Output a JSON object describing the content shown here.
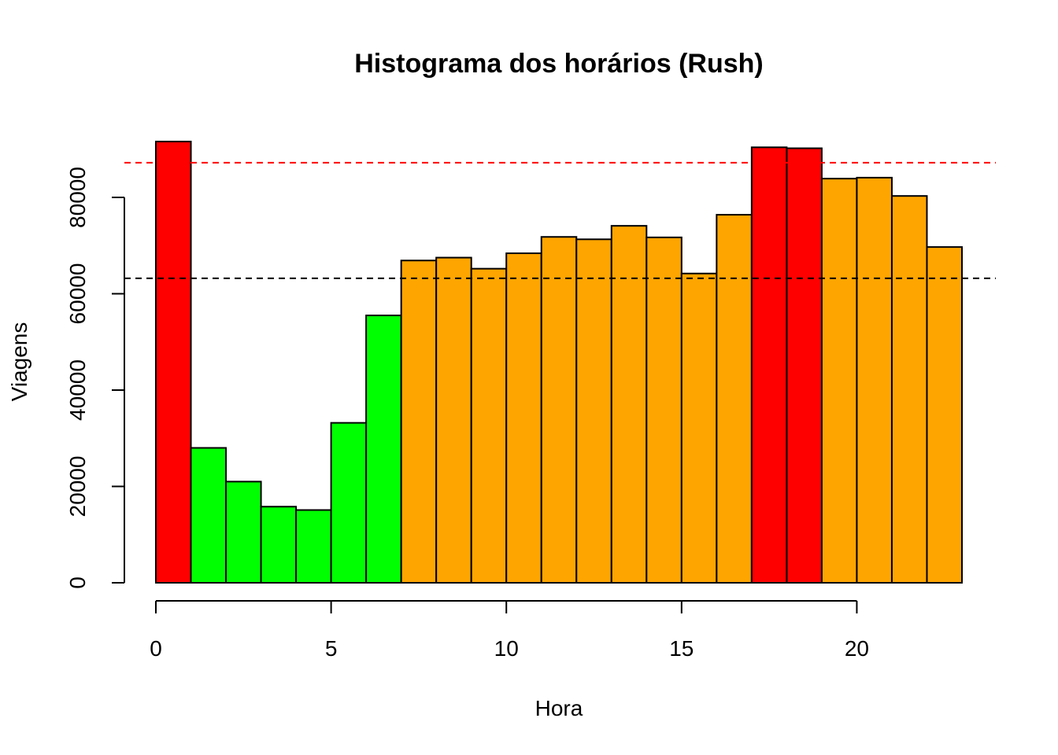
{
  "chart_data": {
    "type": "bar",
    "title": "Histograma dos horários (Rush)",
    "xlabel": "Hora",
    "ylabel": "Viagens",
    "x_ticks": [
      0,
      5,
      10,
      15,
      20
    ],
    "y_ticks": [
      0,
      20000,
      40000,
      60000,
      80000
    ],
    "xlim": [
      0,
      23
    ],
    "ylim": [
      0,
      92000
    ],
    "grid": false,
    "legend": "none",
    "bins": [
      {
        "start": 0,
        "end": 1,
        "value": 91600,
        "color": "#ff0000"
      },
      {
        "start": 1,
        "end": 2,
        "value": 28000,
        "color": "#00ff00"
      },
      {
        "start": 2,
        "end": 3,
        "value": 21000,
        "color": "#00ff00"
      },
      {
        "start": 3,
        "end": 4,
        "value": 15800,
        "color": "#00ff00"
      },
      {
        "start": 4,
        "end": 5,
        "value": 15100,
        "color": "#00ff00"
      },
      {
        "start": 5,
        "end": 6,
        "value": 33200,
        "color": "#00ff00"
      },
      {
        "start": 6,
        "end": 7,
        "value": 55500,
        "color": "#00ff00"
      },
      {
        "start": 7,
        "end": 8,
        "value": 66900,
        "color": "#ffa500"
      },
      {
        "start": 8,
        "end": 9,
        "value": 67500,
        "color": "#ffa500"
      },
      {
        "start": 9,
        "end": 10,
        "value": 65200,
        "color": "#ffa500"
      },
      {
        "start": 10,
        "end": 11,
        "value": 68400,
        "color": "#ffa500"
      },
      {
        "start": 11,
        "end": 12,
        "value": 71800,
        "color": "#ffa500"
      },
      {
        "start": 12,
        "end": 13,
        "value": 71300,
        "color": "#ffa500"
      },
      {
        "start": 13,
        "end": 14,
        "value": 74100,
        "color": "#ffa500"
      },
      {
        "start": 14,
        "end": 15,
        "value": 71700,
        "color": "#ffa500"
      },
      {
        "start": 15,
        "end": 16,
        "value": 64200,
        "color": "#ffa500"
      },
      {
        "start": 16,
        "end": 17,
        "value": 76400,
        "color": "#ffa500"
      },
      {
        "start": 17,
        "end": 18,
        "value": 90400,
        "color": "#ff0000"
      },
      {
        "start": 18,
        "end": 19,
        "value": 90200,
        "color": "#ff0000"
      },
      {
        "start": 19,
        "end": 20,
        "value": 83900,
        "color": "#ffa500"
      },
      {
        "start": 20,
        "end": 21,
        "value": 84100,
        "color": "#ffa500"
      },
      {
        "start": 21,
        "end": 22,
        "value": 80300,
        "color": "#ffa500"
      },
      {
        "start": 22,
        "end": 23,
        "value": 69700,
        "color": "#ffa500"
      }
    ],
    "reference_lines": [
      {
        "value": 87200,
        "color": "#ff0000",
        "style": "dashed"
      },
      {
        "value": 63200,
        "color": "#000000",
        "style": "dashed"
      }
    ]
  }
}
